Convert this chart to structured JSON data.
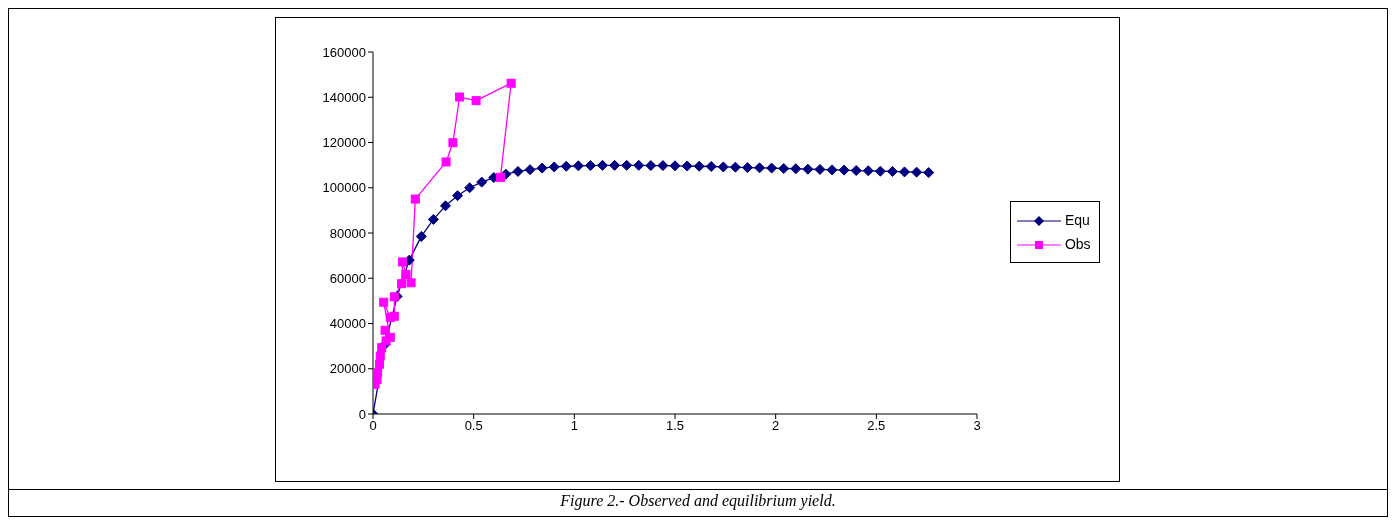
{
  "chart_data": {
    "type": "line",
    "title": "Figure 2.- Observed and equilibrium yield.",
    "xlim": [
      0,
      3
    ],
    "xticks": [
      0,
      0.5,
      1,
      1.5,
      2,
      2.5,
      3
    ],
    "ylim": [
      0,
      160000
    ],
    "yticks": [
      0,
      20000,
      40000,
      60000,
      80000,
      100000,
      120000,
      140000,
      160000
    ],
    "legend": "right",
    "line_style": "solid",
    "series": [
      {
        "name": "Equ",
        "color": "#000080",
        "marker": "diamond",
        "x": [
          0,
          0.06,
          0.12,
          0.18,
          0.24,
          0.3,
          0.36,
          0.42,
          0.48,
          0.54,
          0.6,
          0.66,
          0.72,
          0.78,
          0.84,
          0.9,
          0.96,
          1.02,
          1.08,
          1.14,
          1.2,
          1.26,
          1.32,
          1.38,
          1.44,
          1.5,
          1.56,
          1.62,
          1.68,
          1.74,
          1.8,
          1.86,
          1.92,
          1.98,
          2.04,
          2.1,
          2.16,
          2.22,
          2.28,
          2.34,
          2.4,
          2.46,
          2.52,
          2.58,
          2.64,
          2.7,
          2.76
        ],
        "values": [
          0,
          30800,
          52000,
          68000,
          78500,
          86000,
          92000,
          96500,
          100000,
          102500,
          104500,
          106000,
          107200,
          108000,
          108700,
          109200,
          109500,
          109700,
          109800,
          109900,
          109900,
          109900,
          109900,
          109800,
          109800,
          109700,
          109600,
          109500,
          109400,
          109200,
          109100,
          108900,
          108800,
          108700,
          108500,
          108400,
          108200,
          108100,
          107900,
          107800,
          107600,
          107500,
          107300,
          107200,
          107000,
          106900,
          106700
        ]
      },
      {
        "name": "Obs",
        "color": "#ff00ff",
        "marker": "square",
        "x": [
          0.01,
          0.02,
          0.023,
          0.032,
          0.036,
          0.043,
          0.065,
          0.06,
          0.086,
          0.053,
          0.086,
          0.106,
          0.106,
          0.142,
          0.147,
          0.164,
          0.189,
          0.21,
          0.363,
          0.397,
          0.43,
          0.512,
          0.686,
          0.633
        ],
        "values": [
          13100,
          15300,
          18300,
          22000,
          25600,
          29300,
          32300,
          37000,
          33900,
          49400,
          42600,
          43200,
          51800,
          57600,
          67200,
          61700,
          58000,
          95000,
          111400,
          119900,
          140100,
          138500,
          146200,
          104600
        ]
      }
    ]
  }
}
